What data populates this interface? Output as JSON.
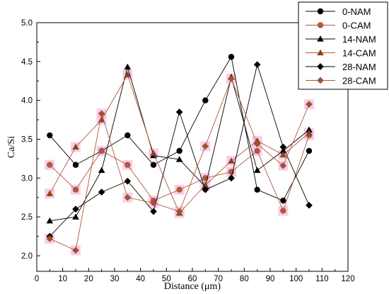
{
  "chart_data": {
    "type": "line",
    "xlabel": "Distance (μm)",
    "ylabel": "Ca/Si",
    "xlim": [
      0,
      120
    ],
    "ylim": [
      1.8,
      5.0
    ],
    "x_ticks": [
      0,
      10,
      20,
      30,
      40,
      50,
      60,
      70,
      80,
      90,
      100,
      110,
      120
    ],
    "y_ticks": [
      2.0,
      2.5,
      3.0,
      3.5,
      4.0,
      4.5,
      5.0
    ],
    "y_tick_labels": [
      "2.0",
      "2.5",
      "3.0",
      "3.5",
      "4.0",
      "4.5",
      "5.0"
    ],
    "grid": false,
    "legend_position": "top-right",
    "x": [
      5,
      15,
      25,
      35,
      45,
      55,
      65,
      75,
      85,
      95,
      105
    ],
    "series": [
      {
        "name": "0-NAM",
        "marker": "circle",
        "line_color": "#000000",
        "marker_color": "#000000",
        "values": [
          3.55,
          3.17,
          3.35,
          3.55,
          3.17,
          3.35,
          4.0,
          4.56,
          2.85,
          2.71,
          3.35
        ]
      },
      {
        "name": "0-CAM",
        "marker": "circle",
        "line_color": "#b5573a",
        "marker_color": "#b5573a",
        "values": [
          3.17,
          2.85,
          3.35,
          3.17,
          2.71,
          2.85,
          3.0,
          3.08,
          3.35,
          2.58,
          3.55
        ]
      },
      {
        "name": "14-NAM",
        "marker": "triangle",
        "line_color": "#000000",
        "marker_color": "#000000",
        "values": [
          2.45,
          2.5,
          3.1,
          4.43,
          3.29,
          3.24,
          2.89,
          4.3,
          3.1,
          3.35,
          3.62
        ]
      },
      {
        "name": "14-CAM",
        "marker": "triangle",
        "line_color": "#b5573a",
        "marker_color": "#8b4513",
        "values": [
          2.8,
          3.4,
          3.75,
          4.33,
          3.32,
          2.55,
          2.91,
          3.22,
          3.48,
          3.3,
          3.58
        ]
      },
      {
        "name": "28-NAM",
        "marker": "diamond",
        "line_color": "#000000",
        "marker_color": "#000000",
        "values": [
          2.25,
          2.6,
          2.82,
          2.96,
          2.57,
          3.85,
          2.85,
          3.0,
          4.46,
          3.4,
          2.65
        ]
      },
      {
        "name": "28-CAM",
        "marker": "diamond",
        "line_color": "#b5573a",
        "marker_color": "#a0522d",
        "values": [
          2.22,
          2.07,
          3.83,
          2.75,
          2.68,
          2.57,
          3.41,
          4.28,
          3.44,
          3.16,
          3.95
        ]
      }
    ]
  }
}
